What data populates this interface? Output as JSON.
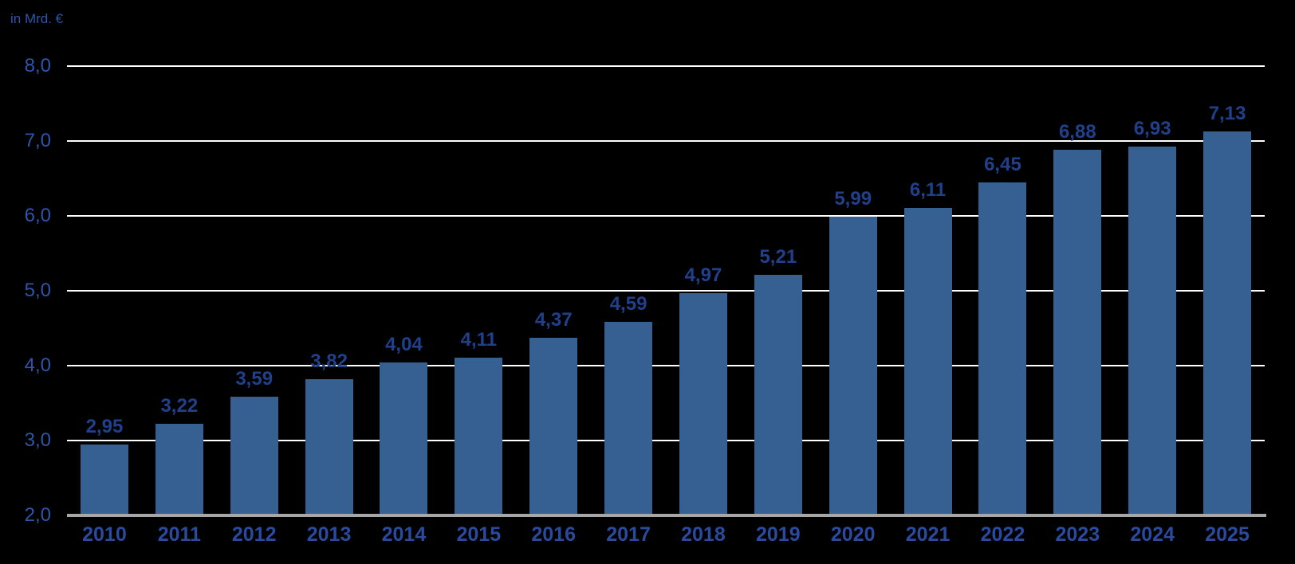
{
  "header": {
    "unit_label": "in Mrd. €"
  },
  "colors": {
    "background": "#000000",
    "bar_fill": "#366092",
    "value_label": "#21408C",
    "year_label": "#2A4A9E",
    "ytick_label": "#2E55A8",
    "unit_label": "#2E55A8",
    "gridline": "#FFFFFF",
    "axis_line": "#A6A6A6"
  },
  "chart_data": {
    "type": "bar",
    "title": "",
    "ylabel": "in Mrd. €",
    "xlabel": "",
    "categories": [
      "2010",
      "2011",
      "2012",
      "2013",
      "2014",
      "2015",
      "2016",
      "2017",
      "2018",
      "2019",
      "2020",
      "2021",
      "2022",
      "2023",
      "2024",
      "2025"
    ],
    "values": [
      2.95,
      3.22,
      3.59,
      3.82,
      4.04,
      4.11,
      4.37,
      4.59,
      4.97,
      5.21,
      5.99,
      6.11,
      6.45,
      6.88,
      6.93,
      7.13
    ],
    "value_labels": [
      "2,95",
      "3,22",
      "3,59",
      "3,82",
      "4,04",
      "4,11",
      "4,37",
      "4,59",
      "4,97",
      "5,21",
      "5,99",
      "6,11",
      "6,45",
      "6,88",
      "6,93",
      "7,13"
    ],
    "ylim": [
      2.0,
      8.0
    ],
    "yticks": [
      {
        "value": 8.0,
        "label": "8,0"
      },
      {
        "value": 7.0,
        "label": "7,0"
      },
      {
        "value": 6.0,
        "label": "6,0"
      },
      {
        "value": 5.0,
        "label": "5,0"
      },
      {
        "value": 4.0,
        "label": "4,0"
      },
      {
        "value": 3.0,
        "label": "3,0"
      },
      {
        "value": 2.0,
        "label": "2,0"
      }
    ],
    "grid": "horizontal",
    "legend": "none"
  }
}
